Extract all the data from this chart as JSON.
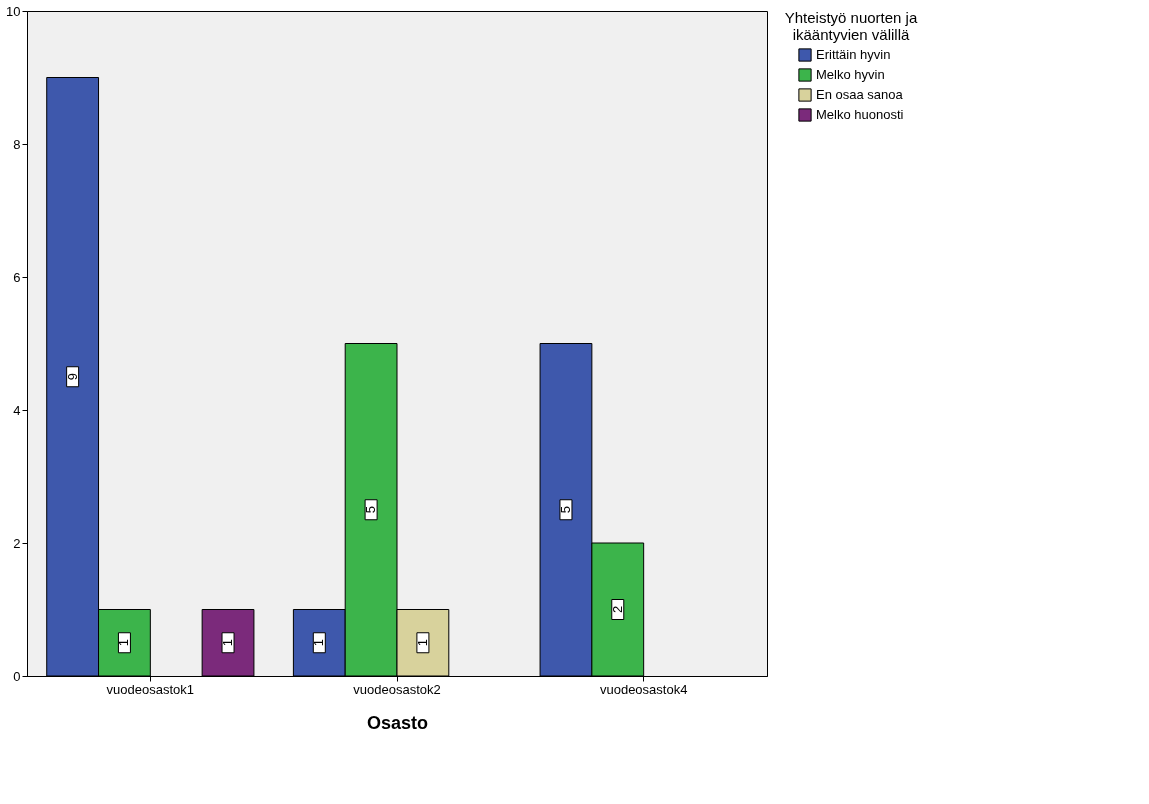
{
  "chart_data": {
    "type": "bar",
    "xlabel": "Osasto",
    "legend_title": "Yhteistyö nuorten ja ikääntyvien välillä",
    "categories": [
      "vuodeosastok1",
      "vuodeosastok2",
      "vuodeosastok4"
    ],
    "series": [
      {
        "name": "Erittäin hyvin",
        "color": "#3e58ac",
        "values": [
          9,
          1,
          5
        ]
      },
      {
        "name": "Melko hyvin",
        "color": "#3cb44b",
        "values": [
          1,
          5,
          2
        ]
      },
      {
        "name": "En osaa sanoa",
        "color": "#d8d29c",
        "values": [
          null,
          1,
          null
        ]
      },
      {
        "name": "Melko huonosti",
        "color": "#7b2a7b",
        "values": [
          1,
          null,
          null
        ]
      }
    ],
    "ylim": [
      0,
      10
    ],
    "yticks": [
      0,
      2,
      4,
      6,
      8,
      10
    ],
    "grid": false,
    "legend": "top right",
    "data_labels": true
  }
}
